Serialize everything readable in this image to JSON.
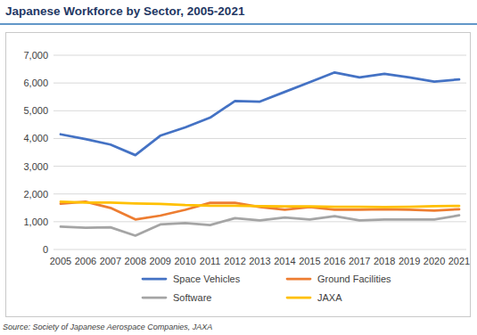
{
  "chart_data": {
    "type": "line",
    "title": "Japanese Workforce by Sector, 2005-2021",
    "source": "Source: Society of Japanese Aerospace Companies, JAXA",
    "categories": [
      "2005",
      "2006",
      "2007",
      "2008",
      "2009",
      "2010",
      "2011",
      "2012",
      "2013",
      "2014",
      "2015",
      "2016",
      "2017",
      "2018",
      "2019",
      "2020",
      "2021"
    ],
    "series": [
      {
        "name": "Space Vehicles",
        "color": "#4472c4",
        "values": [
          4150,
          3980,
          3780,
          3400,
          4100,
          4400,
          4750,
          5350,
          5330,
          5680,
          6030,
          6380,
          6200,
          6330,
          6200,
          6050,
          6130
        ]
      },
      {
        "name": "Ground Facilities",
        "color": "#ed7d31",
        "values": [
          1650,
          1720,
          1500,
          1080,
          1220,
          1430,
          1680,
          1680,
          1530,
          1430,
          1530,
          1430,
          1430,
          1450,
          1430,
          1400,
          1450
        ]
      },
      {
        "name": "Software",
        "color": "#a5a5a5",
        "values": [
          820,
          780,
          800,
          500,
          900,
          950,
          880,
          1130,
          1050,
          1150,
          1080,
          1200,
          1050,
          1080,
          1080,
          1080,
          1230
        ]
      },
      {
        "name": "JAXA",
        "color": "#ffc000",
        "values": [
          1720,
          1690,
          1690,
          1660,
          1640,
          1600,
          1580,
          1580,
          1560,
          1550,
          1550,
          1540,
          1540,
          1530,
          1540,
          1560,
          1570
        ]
      }
    ],
    "ylim": [
      0,
      7000
    ],
    "yticks": [
      0,
      {
        "value": 1000,
        "label": "1,000"
      },
      {
        "value": 2000,
        "label": "2,000"
      },
      {
        "value": 3000,
        "label": "3,000"
      },
      {
        "value": 4000,
        "label": "4,000"
      },
      {
        "value": 5000,
        "label": "5,000"
      },
      {
        "value": 6000,
        "label": "6,000"
      },
      {
        "value": 7000,
        "label": "7,000"
      }
    ],
    "grid": true,
    "legend": "bottom"
  }
}
